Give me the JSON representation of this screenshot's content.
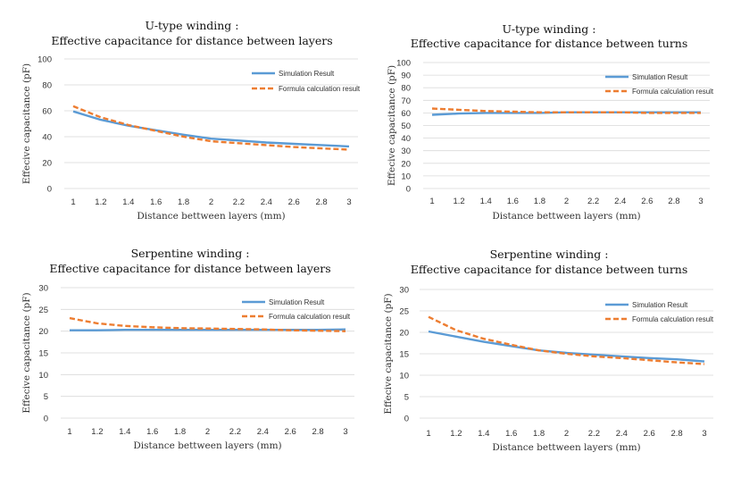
{
  "colors": {
    "simulation": "#5b9bd5",
    "formula": "#ed7d31",
    "grid": "#d9d9d9"
  },
  "chart_data": [
    {
      "type": "line",
      "title": [
        "U-type winding :",
        "Effective capacitance for distance between layers"
      ],
      "xlabel": "Distance bettween layers (mm)",
      "ylabel": "Effecive capacitance (pF)",
      "x": [
        1,
        1.2,
        1.4,
        1.6,
        1.8,
        2,
        2.2,
        2.4,
        2.6,
        2.8,
        3
      ],
      "xticks": [
        "1",
        "1.2",
        "1.4",
        "1.6",
        "1.8",
        "2",
        "2.2",
        "2.4",
        "2.6",
        "2.8",
        "3"
      ],
      "ylim": [
        0,
        100
      ],
      "yticks": [
        0,
        20,
        40,
        60,
        80,
        100
      ],
      "grid": "horizontal",
      "legend": "top-right",
      "series": [
        {
          "name": "Simulation Result",
          "style": "solid",
          "values": [
            59.5,
            53,
            48.5,
            45,
            41.5,
            38.5,
            37,
            35.5,
            34.5,
            33.5,
            32.5
          ]
        },
        {
          "name": "Formula calculation result",
          "style": "dashed",
          "values": [
            63.5,
            55,
            49,
            44.5,
            40,
            36.5,
            35,
            33.5,
            32,
            31,
            30
          ]
        }
      ]
    },
    {
      "type": "line",
      "title": [
        "U-type winding :",
        "Effective capacitance for distance between turns"
      ],
      "xlabel": "Distance bettween layers (mm)",
      "ylabel": "Effecive capacitance (pF)",
      "x": [
        1,
        1.2,
        1.4,
        1.6,
        1.8,
        2,
        2.2,
        2.4,
        2.6,
        2.8,
        3
      ],
      "xticks": [
        "1",
        "1.2",
        "1.4",
        "1.6",
        "1.8",
        "2",
        "2.2",
        "2.4",
        "2.6",
        "2.8",
        "3"
      ],
      "ylim": [
        0,
        100
      ],
      "yticks": [
        0,
        10,
        20,
        30,
        40,
        50,
        60,
        70,
        80,
        90,
        100
      ],
      "grid": "horizontal",
      "legend": "top-right",
      "series": [
        {
          "name": "Simulation Result",
          "style": "solid",
          "values": [
            58.5,
            59.5,
            60,
            60,
            60,
            60.5,
            60.5,
            60.5,
            60.5,
            60.5,
            60.5
          ]
        },
        {
          "name": "Formula calculation result",
          "style": "dashed",
          "values": [
            63.5,
            62.5,
            61.5,
            61,
            60.5,
            60.5,
            60.5,
            60.5,
            60,
            60,
            60
          ]
        }
      ]
    },
    {
      "type": "line",
      "title": [
        "Serpentine winding :",
        "Effective capacitance for distance between layers"
      ],
      "xlabel": "Distance bettween layers (mm)",
      "ylabel": "Effecive capacitance (pF)",
      "x": [
        1,
        1.2,
        1.4,
        1.6,
        1.8,
        2,
        2.2,
        2.4,
        2.6,
        2.8,
        3
      ],
      "xticks": [
        "1",
        "1.2",
        "1.4",
        "1.6",
        "1.8",
        "2",
        "2.2",
        "2.4",
        "2.6",
        "2.8",
        "3"
      ],
      "ylim": [
        0,
        30
      ],
      "yticks": [
        0,
        5,
        10,
        15,
        20,
        25,
        30
      ],
      "grid": "horizontal",
      "legend": "top-right",
      "series": [
        {
          "name": "Simulation Result",
          "style": "solid",
          "values": [
            20.2,
            20.2,
            20.3,
            20.3,
            20.3,
            20.3,
            20.3,
            20.3,
            20.3,
            20.3,
            20.4
          ]
        },
        {
          "name": "Formula calculation result",
          "style": "dashed",
          "values": [
            23,
            21.8,
            21.2,
            20.9,
            20.7,
            20.6,
            20.5,
            20.4,
            20.2,
            20.1,
            20
          ]
        }
      ]
    },
    {
      "type": "line",
      "title": [
        "Serpentine winding :",
        "Effective capacitance for distance between turns"
      ],
      "xlabel": "Distance bettween layers (mm)",
      "ylabel": "Effecive capacitance (pF)",
      "x": [
        1,
        1.2,
        1.4,
        1.6,
        1.8,
        2,
        2.2,
        2.4,
        2.6,
        2.8,
        3
      ],
      "xticks": [
        "1",
        "1.2",
        "1.4",
        "1.6",
        "1.8",
        "2",
        "2.2",
        "2.4",
        "2.6",
        "2.8",
        "3"
      ],
      "ylim": [
        0,
        30
      ],
      "yticks": [
        0,
        5,
        10,
        15,
        20,
        25,
        30
      ],
      "grid": "horizontal",
      "legend": "top-right",
      "series": [
        {
          "name": "Simulation Result",
          "style": "solid",
          "values": [
            20.2,
            19,
            17.8,
            16.8,
            15.8,
            15.2,
            14.8,
            14.4,
            14,
            13.7,
            13.2
          ]
        },
        {
          "name": "Formula calculation result",
          "style": "dashed",
          "values": [
            23.6,
            20.5,
            18.5,
            17.1,
            15.8,
            15,
            14.4,
            14,
            13.5,
            13,
            12.6
          ]
        }
      ]
    }
  ]
}
